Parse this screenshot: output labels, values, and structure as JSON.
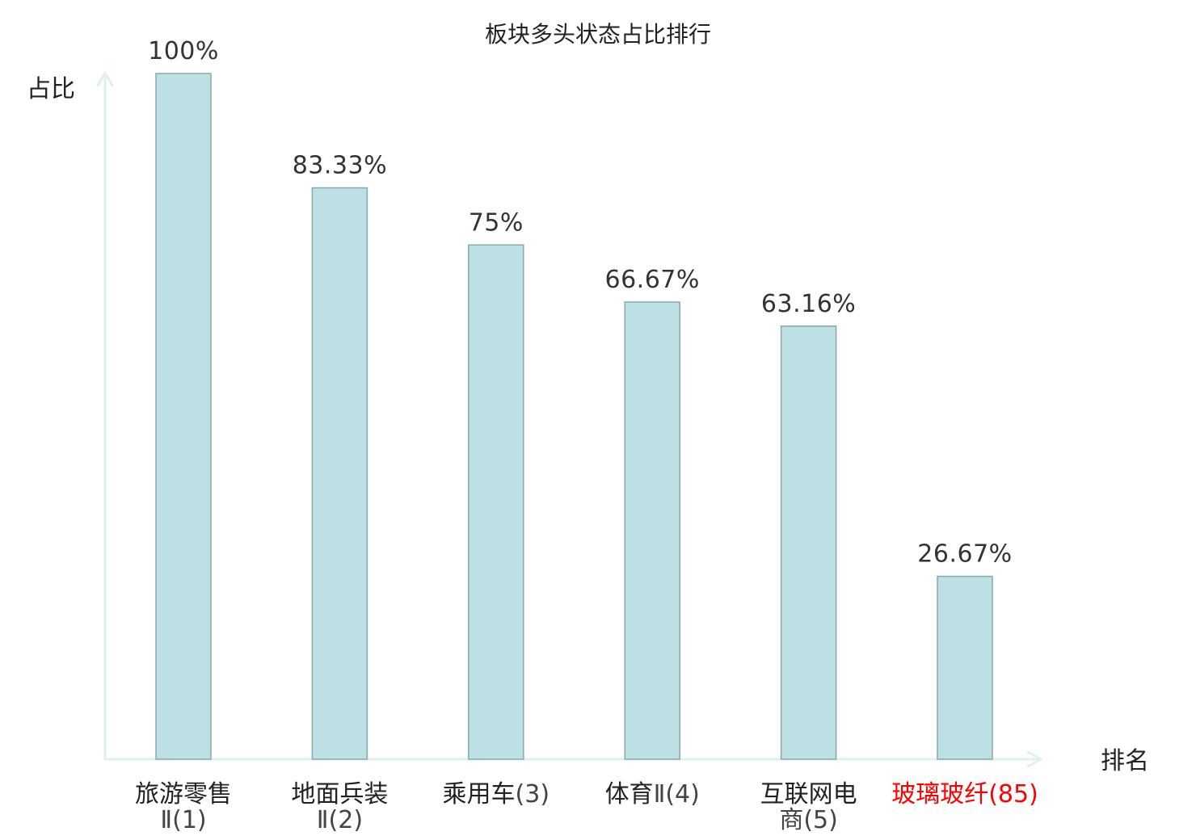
{
  "chart_data": {
    "type": "bar",
    "title": "板块多头状态占比排行",
    "ylabel": "占比",
    "xlabel": "排名",
    "ylim": [
      0,
      100
    ],
    "grid": false,
    "categories": [
      {
        "name": "旅游零售",
        "rank": "Ⅱ(1)",
        "highlight": false
      },
      {
        "name": "地面兵装",
        "rank": "Ⅱ(2)",
        "highlight": false
      },
      {
        "name": "乘用车",
        "rank": "(3)",
        "highlight": false
      },
      {
        "name": "体育",
        "rank": "Ⅱ(4)",
        "highlight": false
      },
      {
        "name": "互联网电",
        "rank": "商(5)",
        "highlight": false
      },
      {
        "name": "玻璃玻纤",
        "rank": "(85)",
        "highlight": true
      }
    ],
    "values": [
      100,
      83.33,
      75,
      66.67,
      63.16,
      26.67
    ],
    "value_labels": [
      "100%",
      "83.33%",
      "75%",
      "66.67%",
      "63.16%",
      "26.67%"
    ]
  },
  "colors": {
    "bar_fill": "#bce0e3",
    "bar_stroke": "#8aa9ac",
    "axis": "#dff1ee",
    "text": "#222222",
    "value_text": "#333333",
    "rank_text": "#444444",
    "highlight": "#ff0000"
  }
}
